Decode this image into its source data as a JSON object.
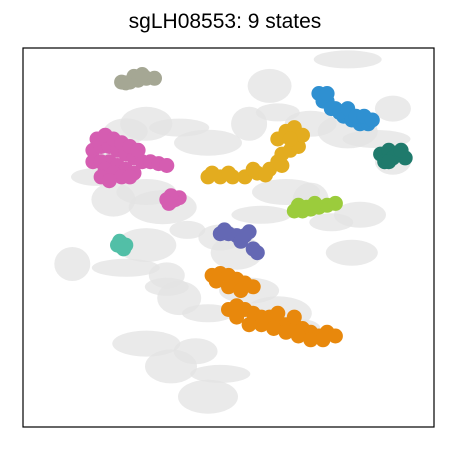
{
  "chart_data": {
    "type": "scatter",
    "title": "sgLH08553: 9 states",
    "xlabel": "",
    "ylabel": "",
    "xlim": [
      0,
      100
    ],
    "ylim": [
      0,
      100
    ],
    "grid": false,
    "legend": "none",
    "axes_ticks": false,
    "background": {
      "color": "#e3e3e3",
      "description_points": [
        [
          21,
          72
        ],
        [
          25,
          78
        ],
        [
          30,
          80
        ],
        [
          38,
          79
        ],
        [
          45,
          75
        ],
        [
          55,
          80
        ],
        [
          62,
          83
        ],
        [
          70,
          80
        ],
        [
          79,
          78
        ],
        [
          86,
          76
        ],
        [
          90,
          70
        ],
        [
          22,
          60
        ],
        [
          18,
          66
        ],
        [
          30,
          62
        ],
        [
          34,
          58
        ],
        [
          40,
          52
        ],
        [
          48,
          50
        ],
        [
          52,
          46
        ],
        [
          58,
          56
        ],
        [
          64,
          62
        ],
        [
          70,
          60
        ],
        [
          75,
          54
        ],
        [
          82,
          56
        ],
        [
          30,
          48
        ],
        [
          25,
          42
        ],
        [
          35,
          40
        ],
        [
          38,
          34
        ],
        [
          45,
          30
        ],
        [
          55,
          36
        ],
        [
          62,
          30
        ],
        [
          68,
          26
        ],
        [
          42,
          20
        ],
        [
          36,
          16
        ],
        [
          48,
          14
        ],
        [
          30,
          22
        ],
        [
          12,
          43
        ],
        [
          35,
          37
        ],
        [
          80,
          46
        ],
        [
          45,
          8
        ],
        [
          79,
          97
        ],
        [
          90,
          84
        ],
        [
          60,
          90
        ]
      ]
    },
    "series": [
      {
        "color": "#a5a794",
        "points": [
          [
            24,
            91
          ],
          [
            26,
            91
          ],
          [
            28,
            91.5
          ],
          [
            30,
            92
          ],
          [
            32,
            92
          ],
          [
            27,
            92.5
          ],
          [
            29,
            93
          ],
          [
            25,
            90.8
          ]
        ]
      },
      {
        "color": "#d55db1",
        "points": [
          [
            17,
            73
          ],
          [
            19,
            74
          ],
          [
            21,
            74
          ],
          [
            23,
            73
          ],
          [
            25,
            72
          ],
          [
            27,
            71
          ],
          [
            29,
            70
          ],
          [
            31,
            70
          ],
          [
            33,
            69.5
          ],
          [
            35,
            69
          ],
          [
            17,
            70
          ],
          [
            19,
            70
          ],
          [
            21,
            70
          ],
          [
            23,
            69
          ],
          [
            25,
            68
          ],
          [
            27,
            67
          ],
          [
            18,
            76
          ],
          [
            20,
            77
          ],
          [
            22,
            76
          ],
          [
            24,
            75
          ],
          [
            26,
            74
          ],
          [
            28,
            73
          ],
          [
            20,
            68
          ],
          [
            22,
            67
          ],
          [
            24,
            66
          ],
          [
            26,
            66
          ],
          [
            19,
            66
          ],
          [
            21,
            65
          ]
        ]
      },
      {
        "color": "#d55db1",
        "points": [
          [
            35,
            60
          ],
          [
            36,
            59.5
          ],
          [
            37,
            60
          ],
          [
            38,
            60.5
          ],
          [
            36,
            61
          ],
          [
            35.5,
            59
          ]
        ]
      },
      {
        "color": "#52bfa7",
        "points": [
          [
            23,
            48
          ],
          [
            24,
            48.5
          ],
          [
            25,
            48
          ],
          [
            24,
            47.5
          ],
          [
            23.5,
            49
          ],
          [
            24.5,
            47
          ]
        ]
      },
      {
        "color": "#e3ac1f",
        "points": [
          [
            45,
            66
          ],
          [
            48,
            66
          ],
          [
            51,
            66
          ],
          [
            54,
            66
          ],
          [
            57,
            67
          ],
          [
            60,
            68
          ],
          [
            63,
            69
          ],
          [
            46,
            67
          ],
          [
            50,
            67
          ],
          [
            56,
            68
          ],
          [
            62,
            70
          ],
          [
            59,
            66.5
          ],
          [
            63,
            72
          ],
          [
            65,
            73
          ],
          [
            67,
            74
          ],
          [
            62,
            76
          ],
          [
            64,
            78
          ],
          [
            66,
            79
          ],
          [
            68,
            77
          ],
          [
            65,
            76
          ]
        ]
      },
      {
        "color": "#2f90d1",
        "points": [
          [
            72,
            88
          ],
          [
            74,
            86
          ],
          [
            76,
            84
          ],
          [
            78,
            82
          ],
          [
            80,
            81
          ],
          [
            82,
            80
          ],
          [
            84,
            80
          ],
          [
            73,
            86
          ],
          [
            75,
            84
          ],
          [
            77,
            83
          ],
          [
            79,
            84
          ],
          [
            81,
            82
          ],
          [
            83,
            82
          ],
          [
            85,
            81
          ],
          [
            74,
            88
          ]
        ]
      },
      {
        "color": "#1f7a6c",
        "points": [
          [
            87,
            72
          ],
          [
            89,
            73
          ],
          [
            91,
            72
          ],
          [
            93,
            71
          ],
          [
            88,
            70
          ],
          [
            90,
            71
          ],
          [
            92,
            73
          ],
          [
            89,
            70
          ]
        ]
      },
      {
        "color": "#9bcc3c",
        "points": [
          [
            66,
            57
          ],
          [
            68,
            57
          ],
          [
            70,
            57.5
          ],
          [
            72,
            58
          ],
          [
            74,
            58.5
          ],
          [
            76,
            59
          ],
          [
            67,
            58.5
          ],
          [
            69,
            58
          ],
          [
            71,
            59
          ]
        ]
      },
      {
        "color": "#6468b4",
        "points": [
          [
            48,
            51
          ],
          [
            50,
            51
          ],
          [
            52,
            50.5
          ],
          [
            54,
            50.5
          ],
          [
            55,
            51.5
          ],
          [
            49,
            52
          ],
          [
            53,
            49
          ],
          [
            56,
            47
          ],
          [
            57,
            46
          ]
        ]
      },
      {
        "color": "#e8880c",
        "points": [
          [
            46,
            40
          ],
          [
            48,
            40.5
          ],
          [
            50,
            40
          ],
          [
            52,
            39
          ],
          [
            54,
            38
          ],
          [
            56,
            37
          ],
          [
            47,
            38.5
          ],
          [
            50,
            37
          ],
          [
            53,
            36
          ],
          [
            50,
            31
          ],
          [
            52,
            32
          ],
          [
            54,
            31
          ],
          [
            56,
            30
          ],
          [
            58,
            29
          ],
          [
            60,
            29
          ],
          [
            62,
            28
          ],
          [
            64,
            27
          ],
          [
            66,
            27
          ],
          [
            68,
            26
          ],
          [
            70,
            25
          ],
          [
            72,
            24
          ],
          [
            74,
            25
          ],
          [
            52,
            29
          ],
          [
            55,
            27
          ],
          [
            58,
            27
          ],
          [
            61,
            26
          ],
          [
            64,
            25
          ],
          [
            67,
            24
          ],
          [
            70,
            23
          ],
          [
            73,
            23
          ],
          [
            76,
            24
          ],
          [
            62,
            30
          ],
          [
            66,
            29
          ]
        ]
      }
    ]
  }
}
